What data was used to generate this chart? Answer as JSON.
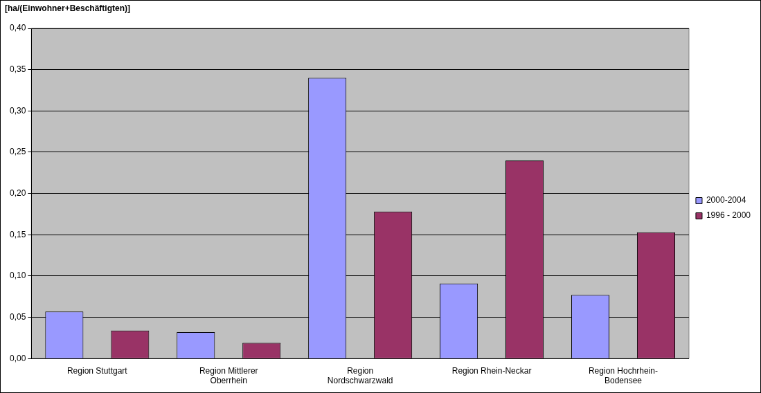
{
  "chart_data": {
    "type": "bar",
    "ylabel": "[ha/(Einwohner+Beschäftigten)]",
    "categories": [
      "Region Stuttgart",
      "Region Mittlerer Oberrhein",
      "Region Nordschwarzwald",
      "Region Rhein-Neckar",
      "Region Hochrhein-Bodensee"
    ],
    "series": [
      {
        "name": "2000-2004",
        "color": "#9999ff",
        "values": [
          0.057,
          0.032,
          0.34,
          0.091,
          0.077
        ]
      },
      {
        "name": "1996 - 2000",
        "color": "#993366",
        "values": [
          0.034,
          0.019,
          0.178,
          0.24,
          0.153
        ]
      }
    ],
    "ylim": [
      0,
      0.4
    ],
    "yticks": [
      {
        "value": 0,
        "label": "0,00"
      },
      {
        "value": 0.05,
        "label": "0,05"
      },
      {
        "value": 0.1,
        "label": "0,10"
      },
      {
        "value": 0.15,
        "label": "0,15"
      },
      {
        "value": 0.2,
        "label": "0,20"
      },
      {
        "value": 0.25,
        "label": "0,25"
      },
      {
        "value": 0.3,
        "label": "0,30"
      },
      {
        "value": 0.35,
        "label": "0,35"
      },
      {
        "value": 0.4,
        "label": "0,40"
      }
    ],
    "grid": "y",
    "legend": "right"
  }
}
